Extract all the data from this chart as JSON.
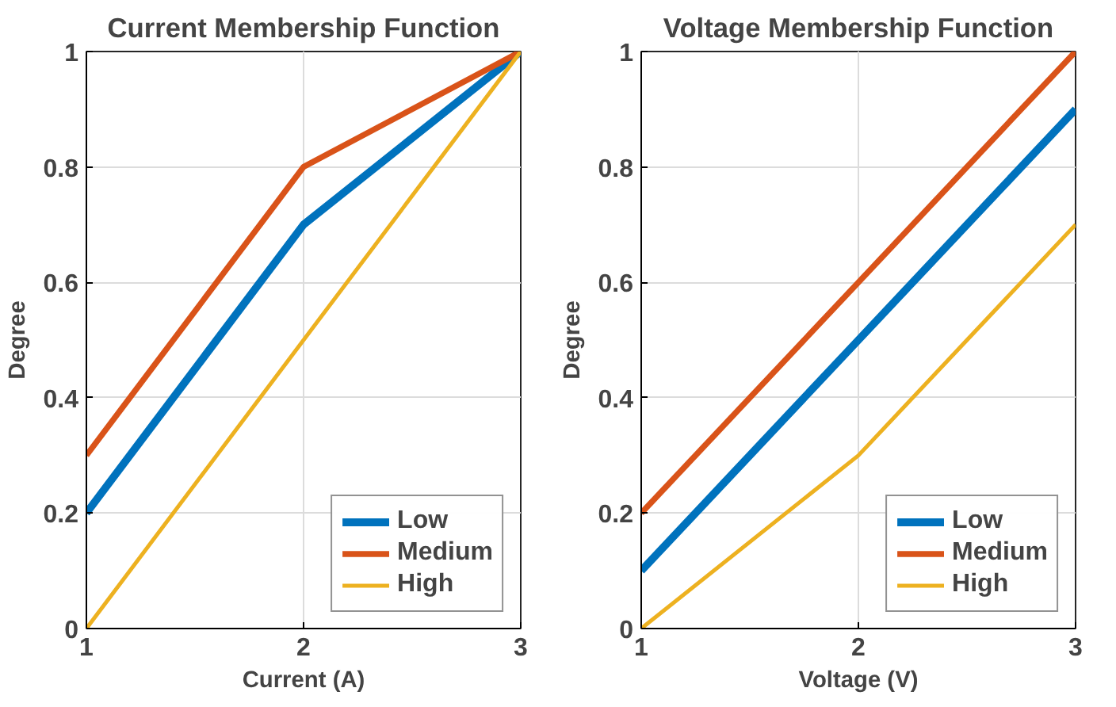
{
  "chart_data": [
    {
      "type": "line",
      "title": "Current Membership Function",
      "xlabel": "Current (A)",
      "ylabel": "Degree",
      "x": [
        1,
        2,
        3
      ],
      "xlim": [
        1,
        3
      ],
      "xticks": [
        1,
        2,
        3
      ],
      "ylim": [
        0,
        1
      ],
      "yticks": [
        0,
        0.2,
        0.4,
        0.6,
        0.8,
        1
      ],
      "grid": true,
      "legend": "bottom right",
      "series": [
        {
          "name": "Low",
          "color": "#0072bd",
          "values": [
            0.2,
            0.7,
            1
          ]
        },
        {
          "name": "Medium",
          "color": "#d95319",
          "values": [
            0.3,
            0.8,
            1
          ]
        },
        {
          "name": "High",
          "color": "#edb120",
          "values": [
            0,
            0.5,
            1
          ]
        }
      ]
    },
    {
      "type": "line",
      "title": "Voltage Membership Function",
      "xlabel": "Voltage (V)",
      "ylabel": "Degree",
      "x": [
        1,
        2,
        3
      ],
      "xlim": [
        1,
        3
      ],
      "xticks": [
        1,
        2,
        3
      ],
      "ylim": [
        0,
        1
      ],
      "yticks": [
        0,
        0.2,
        0.4,
        0.6,
        0.8,
        1
      ],
      "grid": true,
      "legend": "bottom right",
      "series": [
        {
          "name": "Low",
          "color": "#0072bd",
          "values": [
            0.1,
            0.5,
            0.9
          ]
        },
        {
          "name": "Medium",
          "color": "#d95319",
          "values": [
            0.2,
            0.6,
            1
          ]
        },
        {
          "name": "High",
          "color": "#edb120",
          "values": [
            0,
            0.3,
            0.7
          ]
        }
      ]
    }
  ]
}
